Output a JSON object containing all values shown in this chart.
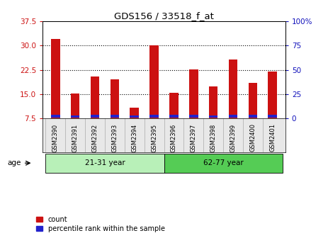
{
  "title": "GDS156 / 33518_f_at",
  "samples": [
    "GSM2390",
    "GSM2391",
    "GSM2392",
    "GSM2393",
    "GSM2394",
    "GSM2395",
    "GSM2396",
    "GSM2397",
    "GSM2398",
    "GSM2399",
    "GSM2400",
    "GSM2401"
  ],
  "count_values": [
    32.0,
    15.3,
    20.5,
    19.5,
    10.8,
    30.2,
    15.5,
    22.7,
    17.3,
    25.8,
    18.5,
    22.0
  ],
  "blue_heights": [
    0.9,
    0.75,
    0.95,
    0.85,
    0.65,
    0.9,
    0.85,
    0.95,
    0.75,
    0.85,
    0.85,
    0.85
  ],
  "ylim_left": [
    7.5,
    37.5
  ],
  "ylim_right": [
    0,
    100
  ],
  "yticks_left": [
    7.5,
    15.0,
    22.5,
    30.0,
    37.5
  ],
  "yticks_right": [
    0,
    25,
    50,
    75,
    100
  ],
  "groups": [
    {
      "label": "21-31 year",
      "start": 0,
      "end": 6,
      "color": "#b8f0b8"
    },
    {
      "label": "62-77 year",
      "start": 6,
      "end": 12,
      "color": "#55cc55"
    }
  ],
  "bar_color_red": "#cc1111",
  "bar_color_blue": "#2222cc",
  "bar_width": 0.45,
  "age_label": "age",
  "legend_count": "count",
  "legend_pct": "percentile rank within the sample",
  "left_tick_color": "#cc1111",
  "right_tick_color": "#1111bb",
  "bg_color": "#ffffff",
  "grid_dotted_at": [
    15.0,
    22.5,
    30.0
  ]
}
